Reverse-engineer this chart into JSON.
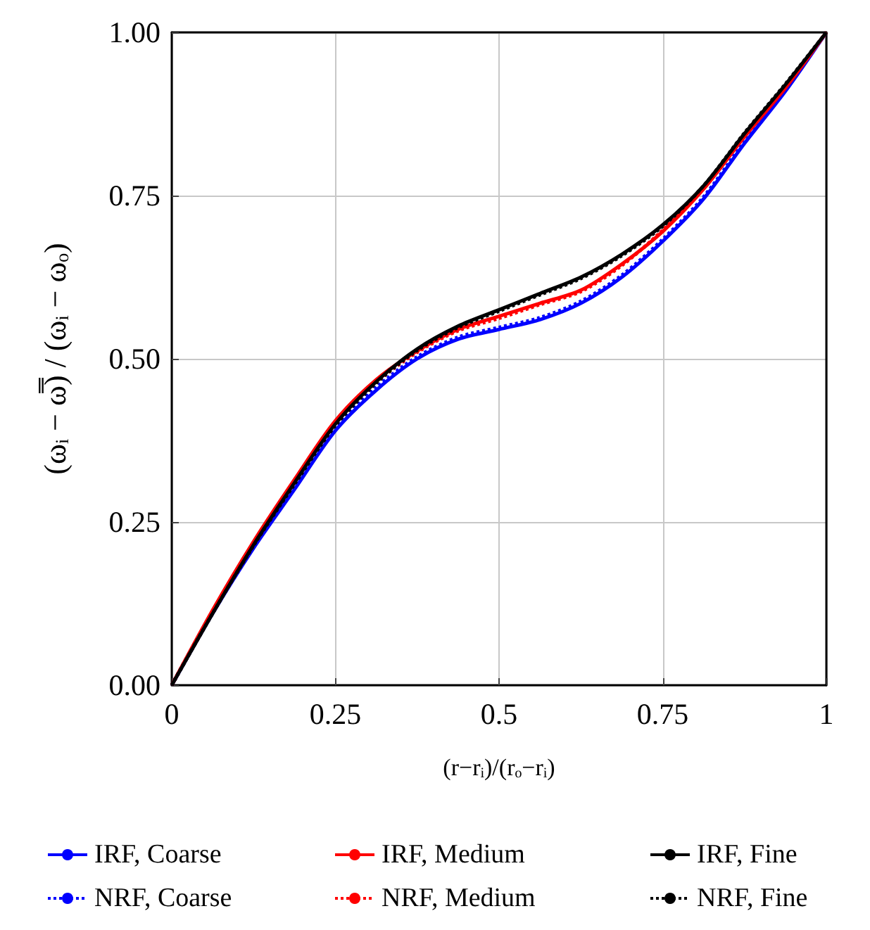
{
  "chart_data": {
    "type": "line",
    "xlabel": "(r−rᵢ)/(rₒ−rᵢ)",
    "ylabel": "(ωᵢ − ω̿) / (ωᵢ − ωₒ)",
    "x": [
      0,
      0.0625,
      0.125,
      0.1875,
      0.25,
      0.3125,
      0.375,
      0.4375,
      0.5,
      0.5625,
      0.625,
      0.6875,
      0.75,
      0.8125,
      0.875,
      0.9375,
      1
    ],
    "series": [
      {
        "name": "IRF, Coarse",
        "color": "#0000ff",
        "line_style": "solid",
        "values": [
          0,
          0.11,
          0.21,
          0.3,
          0.39,
          0.452,
          0.5,
          0.53,
          0.545,
          0.56,
          0.585,
          0.625,
          0.68,
          0.745,
          0.83,
          0.91,
          1
        ]
      },
      {
        "name": "NRF, Coarse",
        "color": "#0000ff",
        "line_style": "dotted",
        "values": [
          0,
          0.112,
          0.212,
          0.303,
          0.393,
          0.456,
          0.503,
          0.533,
          0.548,
          0.563,
          0.588,
          0.628,
          0.683,
          0.748,
          0.833,
          0.912,
          1
        ]
      },
      {
        "name": "IRF, Medium",
        "color": "#ff0000",
        "line_style": "solid",
        "values": [
          0,
          0.115,
          0.22,
          0.315,
          0.405,
          0.468,
          0.512,
          0.545,
          0.565,
          0.585,
          0.605,
          0.645,
          0.695,
          0.76,
          0.84,
          0.915,
          1
        ]
      },
      {
        "name": "NRF, Medium",
        "color": "#ff0000",
        "line_style": "dotted",
        "values": [
          0,
          0.113,
          0.217,
          0.312,
          0.4,
          0.464,
          0.51,
          0.543,
          0.562,
          0.583,
          0.603,
          0.643,
          0.697,
          0.762,
          0.843,
          0.918,
          1
        ]
      },
      {
        "name": "IRF, Fine",
        "color": "#000000",
        "line_style": "solid",
        "values": [
          0,
          0.11,
          0.215,
          0.31,
          0.4,
          0.465,
          0.515,
          0.55,
          0.575,
          0.6,
          0.625,
          0.66,
          0.705,
          0.765,
          0.845,
          0.92,
          1
        ]
      },
      {
        "name": "NRF, Fine",
        "color": "#000000",
        "line_style": "dotted",
        "values": [
          0,
          0.11,
          0.214,
          0.308,
          0.398,
          0.463,
          0.513,
          0.548,
          0.573,
          0.598,
          0.623,
          0.658,
          0.703,
          0.765,
          0.846,
          0.921,
          1
        ]
      }
    ],
    "xlim": [
      0,
      1
    ],
    "xticks": [
      0,
      0.25,
      0.5,
      0.75,
      1
    ],
    "ylim": [
      0,
      1
    ],
    "yticks": [
      {
        "value": 0,
        "label": "0.00"
      },
      {
        "value": 0.25,
        "label": "0.25"
      },
      {
        "value": 0.5,
        "label": "0.50"
      },
      {
        "value": 0.75,
        "label": "0.75"
      },
      {
        "value": 1,
        "label": "1.00"
      }
    ],
    "grid": true,
    "legend": "bottom",
    "marker": "none"
  }
}
